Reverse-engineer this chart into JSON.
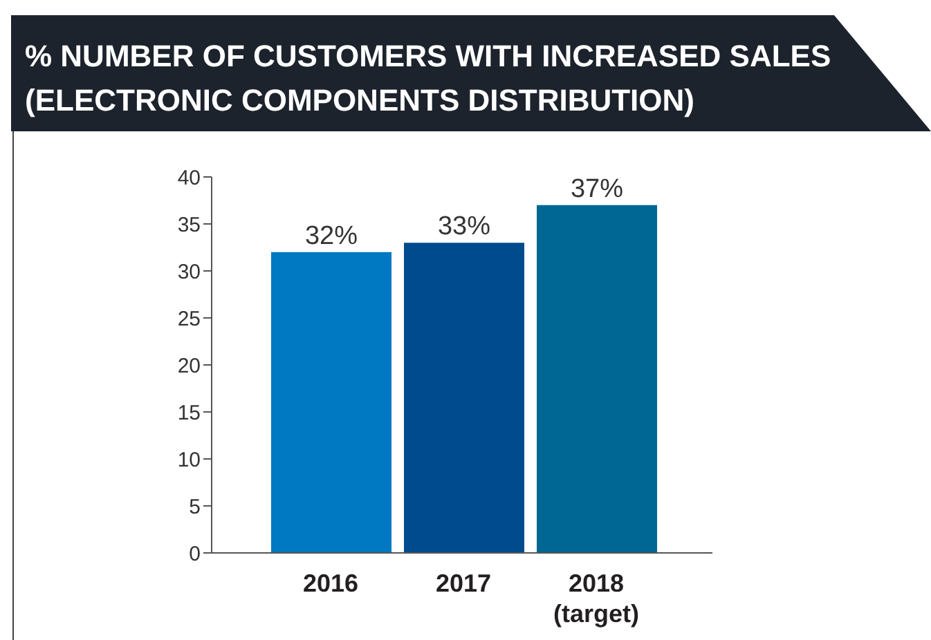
{
  "chart_data": {
    "type": "bar",
    "title": "% NUMBER OF CUSTOMERS WITH INCREASED SALES (ELECTRONIC COMPONENTS DISTRIBUTION)",
    "categories": [
      "2016",
      "2017",
      "2018 (target)"
    ],
    "values": [
      32,
      33,
      37
    ],
    "colors": [
      "#0079c2",
      "#004b8d",
      "#006794"
    ],
    "value_labels": [
      "32%",
      "33%",
      "37%"
    ],
    "ylim": [
      0,
      40
    ],
    "yticks": [
      0,
      5,
      10,
      15,
      20,
      25,
      30,
      35,
      40
    ],
    "grid": false
  }
}
